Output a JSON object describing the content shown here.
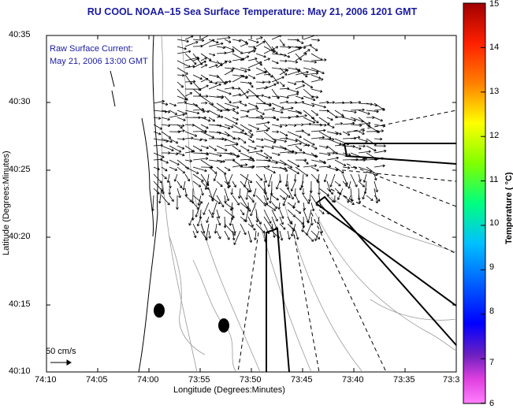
{
  "title": "RU COOL  NOAA–15  Sea Surface Temperature:  May 21, 2006 1201 GMT",
  "legend": {
    "line1": "Raw Surface Current:",
    "line2": "May 21, 2006 13:00 GMT"
  },
  "axes": {
    "ylabel": "Latitude (Degrees:Minutes)",
    "xlabel": "Longitude (Degrees:Minutes)",
    "yticks": [
      "40:35",
      "40:30",
      "40:25",
      "40:20",
      "40:15",
      "40:10"
    ],
    "xticks": [
      "74:10",
      "74:05",
      "74:00",
      "73:55",
      "73:50",
      "73:45",
      "73:40",
      "73:35",
      "73:3"
    ]
  },
  "scale": {
    "label": "50 cm/s"
  },
  "colorbar": {
    "label": "Temperature ( °C)",
    "ticks": [
      "15",
      "14",
      "13",
      "12",
      "11",
      "10",
      "9",
      "8",
      "7",
      "6"
    ]
  },
  "colors": {
    "title": "#1a1aa0",
    "land": "#ffffff",
    "coast": "#000000"
  }
}
